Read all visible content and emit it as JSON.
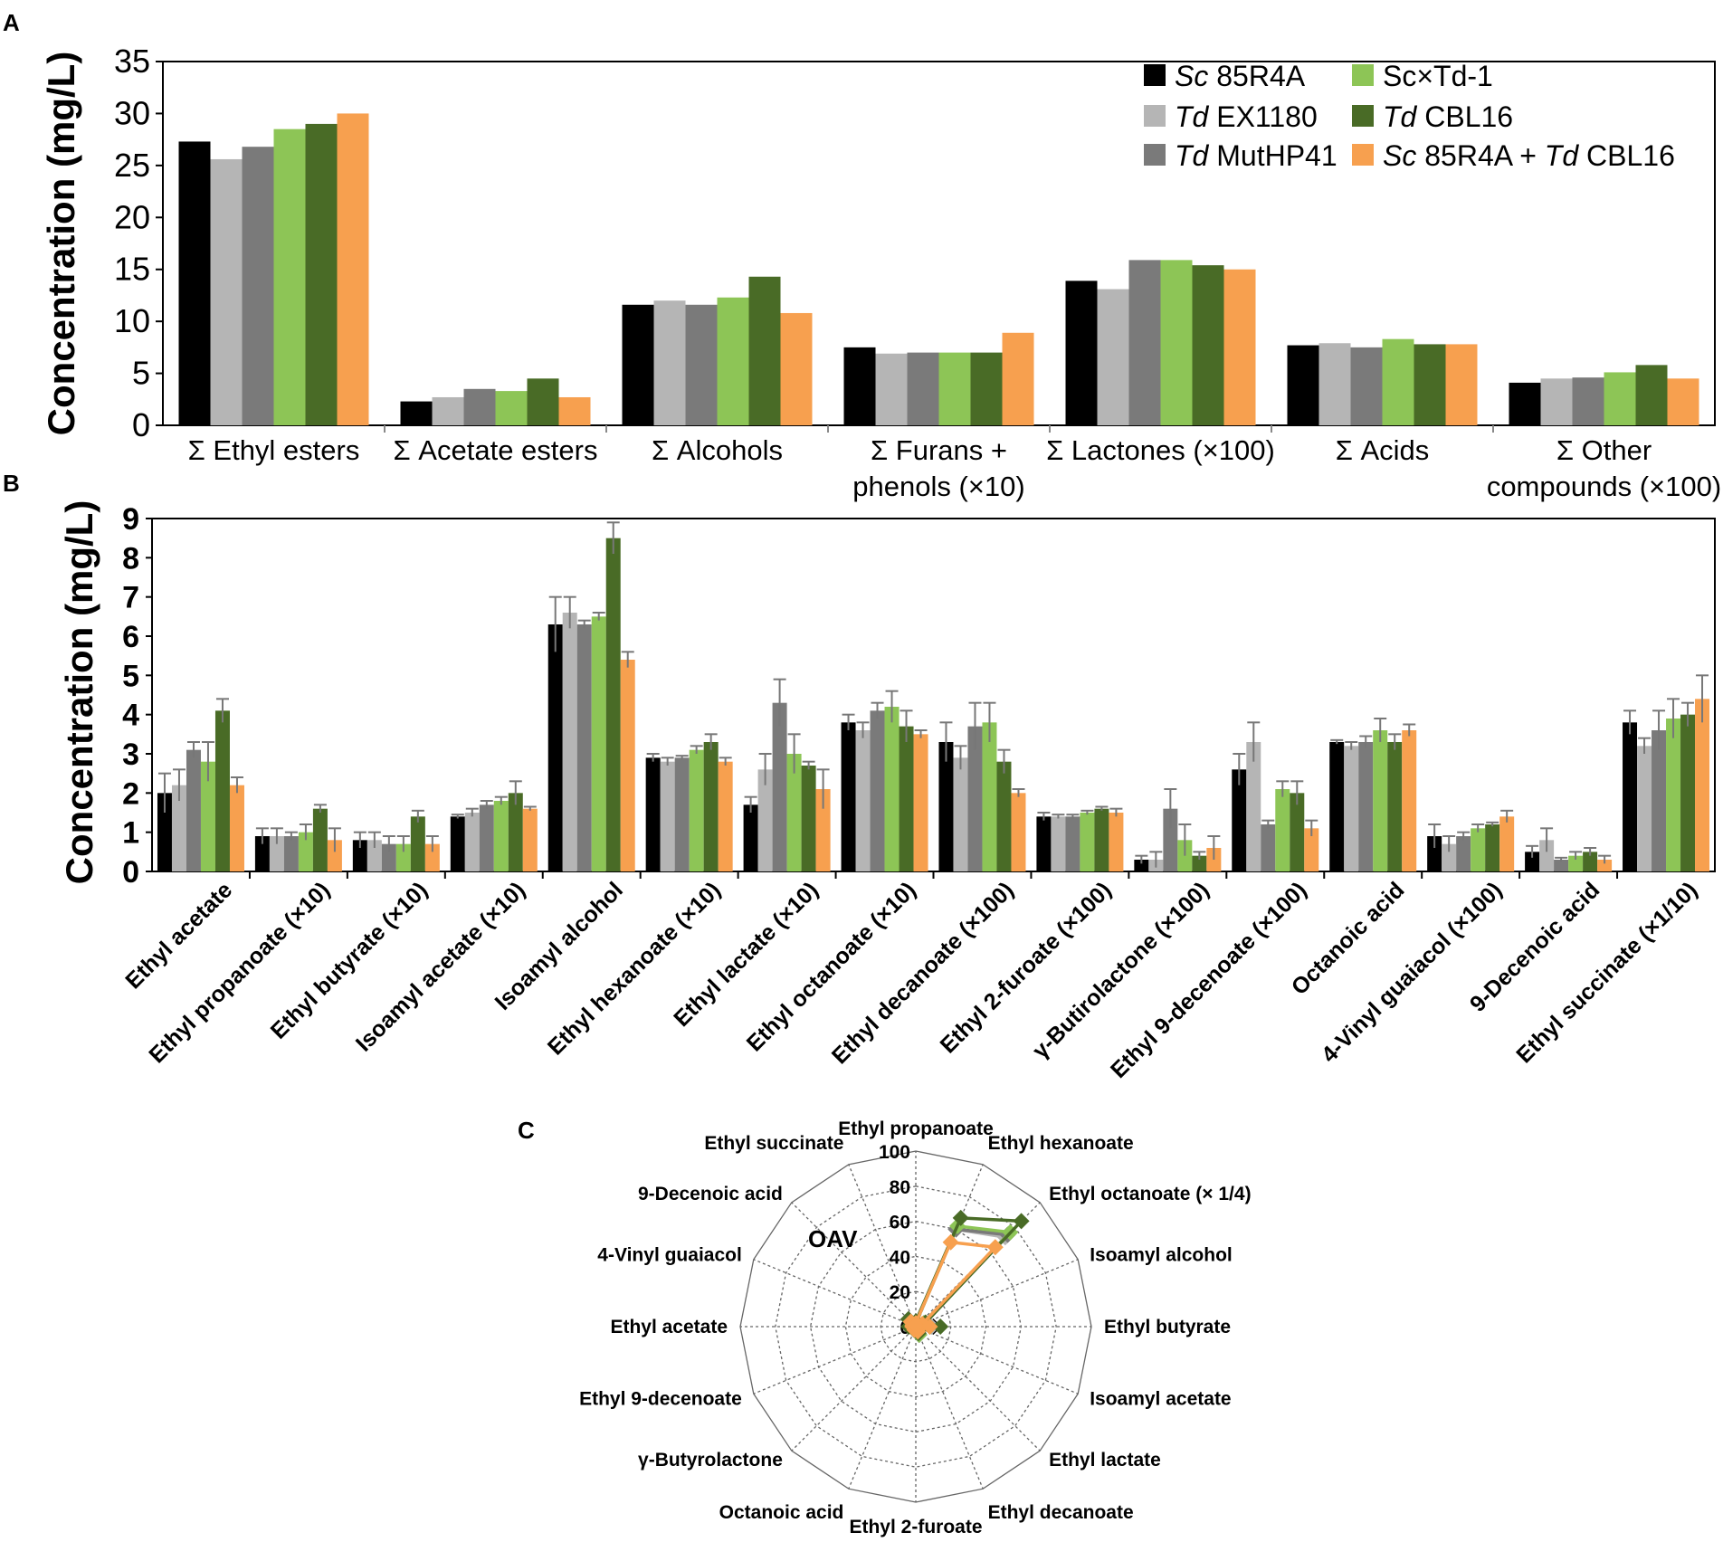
{
  "panel_labels": {
    "a": "A",
    "b": "B",
    "c": "C"
  },
  "colors": {
    "Sc 85R4A": "#000000",
    "Td EX1180": "#b5b5b5",
    "Td MutHP41": "#7a7a7a",
    "Sc×Td-1": "#8dc556",
    "Td CBL16": "#496b26",
    "Sc 85R4A + Td CBL16": "#f7a04f"
  },
  "chart_data": [
    {
      "id": "panel-A",
      "type": "bar",
      "ylabel": "Concentration (mg/L)",
      "xlabel": "",
      "ylim": [
        0,
        35
      ],
      "yticks": [
        0,
        5,
        10,
        15,
        20,
        25,
        30,
        35
      ],
      "grid": false,
      "legend_position": "top-right",
      "legend": [
        {
          "name": "Sc 85R4A",
          "italic": "Sc",
          "rest": " 85R4A"
        },
        {
          "name": "Td EX1180",
          "italic": "Td",
          "rest": " EX1180"
        },
        {
          "name": "Td MutHP41",
          "italic": "Td",
          "rest": " MutHP41"
        },
        {
          "name": "Sc×Td-1",
          "italic": "",
          "rest": "Sc×Td-1"
        },
        {
          "name": "Td CBL16",
          "italic": "Td",
          "rest": " CBL16"
        },
        {
          "name": "Sc 85R4A + Td CBL16",
          "italic": "Sc",
          "rest": " 85R4A + ",
          "italic2": "Td",
          "rest2": " CBL16"
        }
      ],
      "categories": [
        [
          "Σ Ethyl esters"
        ],
        [
          "Σ Acetate esters"
        ],
        [
          "Σ Alcohols"
        ],
        [
          "Σ Furans +",
          "phenols (×10)"
        ],
        [
          "Σ Lactones (×100)"
        ],
        [
          "Σ Acids"
        ],
        [
          "Σ Other",
          "compounds (×100)"
        ]
      ],
      "series": [
        {
          "name": "Sc 85R4A",
          "values": [
            27.3,
            2.3,
            11.6,
            7.5,
            13.9,
            7.7,
            4.1
          ]
        },
        {
          "name": "Td EX1180",
          "values": [
            25.6,
            2.7,
            12.0,
            6.9,
            13.1,
            7.9,
            4.5
          ]
        },
        {
          "name": "Td MutHP41",
          "values": [
            26.8,
            3.5,
            11.6,
            7.0,
            15.9,
            7.5,
            4.6
          ]
        },
        {
          "name": "Sc×Td-1",
          "values": [
            28.5,
            3.3,
            12.3,
            7.0,
            15.9,
            8.3,
            5.1
          ]
        },
        {
          "name": "Td CBL16",
          "values": [
            29.0,
            4.5,
            14.3,
            7.0,
            15.4,
            7.8,
            5.8
          ]
        },
        {
          "name": "Sc 85R4A + Td CBL16",
          "values": [
            30.0,
            2.7,
            10.8,
            8.9,
            15.0,
            7.8,
            4.5
          ]
        }
      ]
    },
    {
      "id": "panel-B",
      "type": "bar",
      "ylabel": "Concentration (mg/L)",
      "xlabel": "",
      "ylim": [
        0,
        9
      ],
      "yticks": [
        0,
        1,
        2,
        3,
        4,
        5,
        6,
        7,
        8,
        9
      ],
      "grid": false,
      "categories": [
        "Ethyl acetate",
        "Ethyl propanoate (×10)",
        "Ethyl butyrate (×10)",
        "Isoamyl acetate (×10)",
        "Isoamyl alcohol",
        "Ethyl hexanoate (×10)",
        "Ethyl lactate (×10)",
        "Ethyl octanoate (×10)",
        "Ethyl decanoate (×100)",
        "Ethyl 2-furoate (×100)",
        "γ-Butirolactone (×100)",
        "Ethyl 9-decenoate (×100)",
        "Octanoic acid",
        "4-Vinyl guaiacol (×100)",
        "9-Decenoic acid",
        "Ethyl succinate (×1/10)"
      ],
      "series": [
        {
          "name": "Sc 85R4A",
          "values": [
            2.0,
            0.9,
            0.8,
            1.4,
            6.3,
            2.9,
            1.7,
            3.8,
            3.3,
            1.4,
            0.3,
            2.6,
            3.3,
            0.9,
            0.5,
            3.8
          ],
          "errors": [
            0.5,
            0.2,
            0.2,
            0.05,
            0.7,
            0.1,
            0.2,
            0.2,
            0.5,
            0.1,
            0.1,
            0.4,
            0.05,
            0.3,
            0.15,
            0.3
          ]
        },
        {
          "name": "Td EX1180",
          "values": [
            2.2,
            0.9,
            0.8,
            1.5,
            6.6,
            2.8,
            2.6,
            3.6,
            2.9,
            1.4,
            0.3,
            3.3,
            3.2,
            0.7,
            0.8,
            3.2
          ],
          "errors": [
            0.4,
            0.2,
            0.2,
            0.1,
            0.4,
            0.1,
            0.4,
            0.2,
            0.3,
            0.05,
            0.2,
            0.5,
            0.1,
            0.2,
            0.3,
            0.2
          ]
        },
        {
          "name": "Td MutHP41",
          "values": [
            3.1,
            0.9,
            0.7,
            1.7,
            6.3,
            2.9,
            4.3,
            4.1,
            3.7,
            1.4,
            1.6,
            1.2,
            3.3,
            0.9,
            0.3,
            3.6
          ],
          "errors": [
            0.2,
            0.1,
            0.2,
            0.1,
            0.1,
            0.05,
            0.6,
            0.2,
            0.6,
            0.05,
            0.5,
            0.1,
            0.15,
            0.1,
            0.05,
            0.5
          ]
        },
        {
          "name": "Sc×Td-1",
          "values": [
            2.8,
            1.0,
            0.7,
            1.8,
            6.5,
            3.1,
            3.0,
            4.2,
            3.8,
            1.5,
            0.8,
            2.1,
            3.6,
            1.1,
            0.4,
            3.9
          ],
          "errors": [
            0.5,
            0.2,
            0.2,
            0.1,
            0.1,
            0.1,
            0.5,
            0.4,
            0.5,
            0.05,
            0.4,
            0.2,
            0.3,
            0.1,
            0.1,
            0.5
          ]
        },
        {
          "name": "Td CBL16",
          "values": [
            4.1,
            1.6,
            1.4,
            2.0,
            8.5,
            3.3,
            2.7,
            3.7,
            2.8,
            1.6,
            0.4,
            2.0,
            3.3,
            1.2,
            0.5,
            4.0
          ],
          "errors": [
            0.3,
            0.1,
            0.15,
            0.3,
            0.4,
            0.2,
            0.1,
            0.4,
            0.3,
            0.05,
            0.1,
            0.3,
            0.2,
            0.05,
            0.1,
            0.3
          ]
        },
        {
          "name": "Sc 85R4A + Td CBL16",
          "values": [
            2.2,
            0.8,
            0.7,
            1.6,
            5.4,
            2.8,
            2.1,
            3.5,
            2.0,
            1.5,
            0.6,
            1.1,
            3.6,
            1.4,
            0.3,
            4.4
          ],
          "errors": [
            0.2,
            0.3,
            0.2,
            0.05,
            0.2,
            0.1,
            0.5,
            0.1,
            0.1,
            0.1,
            0.3,
            0.2,
            0.15,
            0.15,
            0.1,
            0.6
          ]
        }
      ]
    },
    {
      "id": "panel-C",
      "type": "radar",
      "axis_title": "OAV",
      "rmax": 100,
      "rticks": [
        0,
        20,
        40,
        60,
        80,
        100
      ],
      "axes": [
        "Ethyl propanoate",
        "Ethyl hexanoate",
        "Ethyl octanoate (× 1/4)",
        "Isoamyl alcohol",
        "Ethyl butyrate",
        "Isoamyl acetate",
        "Ethyl lactate",
        "Ethyl decanoate",
        "Ethyl 2-furoate",
        "Octanoic acid",
        "γ-Butyrolactone",
        "Ethyl 9-decenoate",
        "Ethyl acetate",
        "4-Vinyl guaiacol",
        "9-Decenoic acid",
        "Ethyl succinate"
      ],
      "series": [
        {
          "name": "Sc 85R4A",
          "values": [
            2,
            60,
            74,
            5,
            10,
            2,
            1,
            5,
            1,
            2,
            1,
            2,
            2,
            2,
            5,
            1
          ]
        },
        {
          "name": "Td EX1180",
          "values": [
            2,
            60,
            72,
            5,
            9,
            2,
            1,
            4,
            1,
            2,
            1,
            2,
            2,
            2,
            5,
            1
          ]
        },
        {
          "name": "Td MutHP41",
          "values": [
            2,
            60,
            74,
            5,
            8,
            2,
            1,
            5,
            1,
            2,
            1,
            2,
            3,
            2,
            4,
            1
          ]
        },
        {
          "name": "Sc×Td-1",
          "values": [
            2,
            62,
            76,
            5,
            8,
            2,
            1,
            5,
            1,
            2,
            1,
            2,
            3,
            2,
            5,
            1
          ]
        },
        {
          "name": "Td CBL16",
          "values": [
            3,
            67,
            85,
            6,
            14,
            3,
            1,
            4,
            1,
            2,
            1,
            2,
            4,
            2,
            6,
            1
          ]
        },
        {
          "name": "Sc 85R4A + Td CBL16",
          "values": [
            2,
            52,
            64,
            4,
            8,
            2,
            1,
            3,
            1,
            2,
            1,
            1,
            2,
            2,
            4,
            1
          ]
        }
      ]
    }
  ]
}
